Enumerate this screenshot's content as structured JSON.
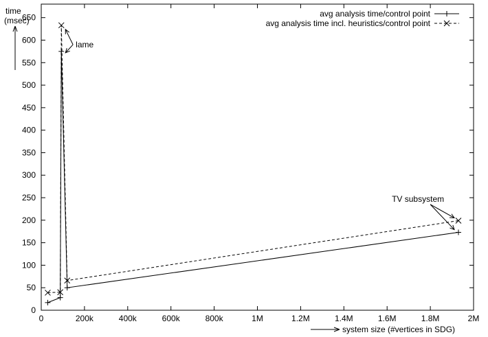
{
  "chart_data": {
    "type": "line",
    "ylabel_line1": "time",
    "ylabel_line2": "(msec)",
    "xlabel": "system size (#vertices in SDG)",
    "xlim": [
      0,
      2000000
    ],
    "ylim": [
      0,
      680
    ],
    "grid": false,
    "legend_position": "top-right",
    "x_ticks": [
      {
        "value": 0,
        "label": "0"
      },
      {
        "value": 200000,
        "label": "200k"
      },
      {
        "value": 400000,
        "label": "400k"
      },
      {
        "value": 600000,
        "label": "600k"
      },
      {
        "value": 800000,
        "label": "800k"
      },
      {
        "value": 1000000,
        "label": "1M"
      },
      {
        "value": 1200000,
        "label": "1.2M"
      },
      {
        "value": 1400000,
        "label": "1.4M"
      },
      {
        "value": 1600000,
        "label": "1.6M"
      },
      {
        "value": 1800000,
        "label": "1.8M"
      },
      {
        "value": 2000000,
        "label": "2M"
      }
    ],
    "y_ticks": [
      0,
      50,
      100,
      150,
      200,
      250,
      300,
      350,
      400,
      450,
      500,
      550,
      600,
      650
    ],
    "series": [
      {
        "name": "avg analysis time/control point",
        "marker": "plus",
        "dash": "solid",
        "color": "#000000",
        "x": [
          30000,
          88000,
          93000,
          120000,
          1930000
        ],
        "y": [
          17,
          28,
          575,
          50,
          173
        ]
      },
      {
        "name": "avg analysis time incl. heuristics/control point",
        "marker": "x",
        "dash": "dashed",
        "color": "#000000",
        "x": [
          30000,
          88000,
          93000,
          120000,
          1930000
        ],
        "y": [
          39,
          40,
          633,
          66,
          199
        ]
      }
    ],
    "annotations": [
      {
        "text": "lame",
        "x": 115000,
        "y": 590
      },
      {
        "text": "TV subsystem",
        "x": 1800000,
        "y": 235
      }
    ]
  }
}
